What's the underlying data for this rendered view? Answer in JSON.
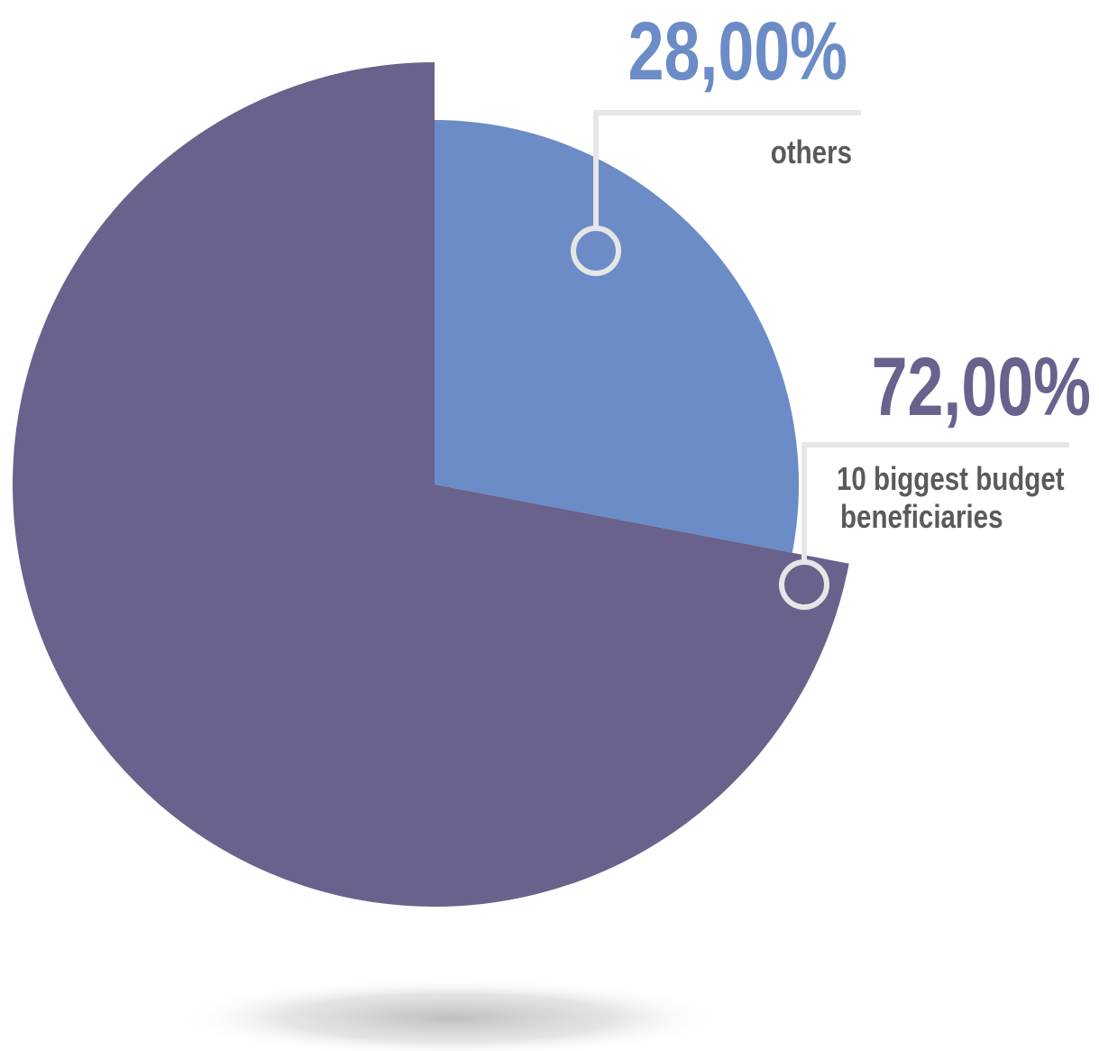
{
  "chart_data": {
    "type": "pie",
    "slices": [
      {
        "label_lines": [
          "others"
        ],
        "value_text": "28,00%",
        "value": 28,
        "color": "#6b8cc6",
        "offset": "none"
      },
      {
        "label_lines": [
          "10 biggest budget",
          "beneficiaries"
        ],
        "value_text": "72,00%",
        "value": 72,
        "color": "#69628c",
        "offset": "exploded"
      }
    ],
    "start_angle_deg": 0,
    "direction": "clockwise",
    "leader_color": "#e6e6e6",
    "label_text_color": "#5a5a5a",
    "shadow": true
  }
}
